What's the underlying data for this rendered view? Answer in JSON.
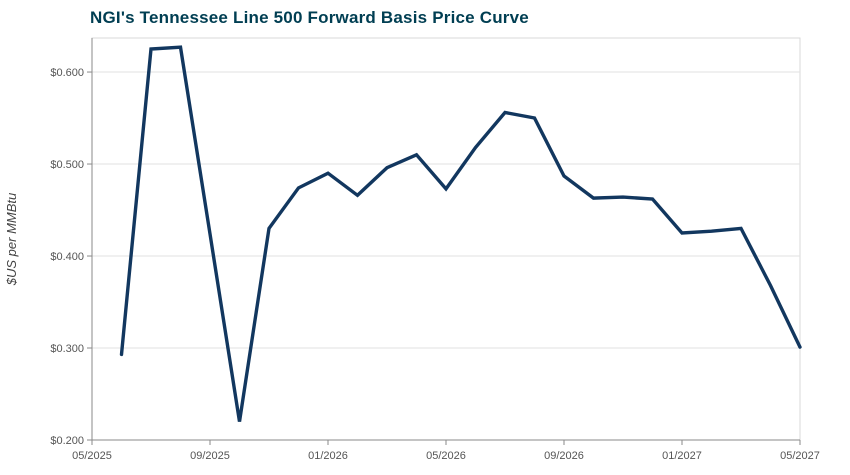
{
  "chart": {
    "title": "NGI's Tennessee Line 500 Forward Basis Price Curve",
    "ylabel": "$US per MMBtu",
    "title_color": "#003e52",
    "line_color": "#12375f"
  },
  "chart_data": {
    "type": "line",
    "title": "NGI's Tennessee Line 500 Forward Basis Price Curve",
    "xlabel": "",
    "ylabel": "$US per MMBtu",
    "x": [
      "06/2025",
      "07/2025",
      "08/2025",
      "09/2025",
      "10/2025",
      "11/2025",
      "12/2025",
      "01/2026",
      "02/2026",
      "03/2026",
      "04/2026",
      "05/2026",
      "06/2026",
      "07/2026",
      "08/2026",
      "09/2026",
      "10/2026",
      "11/2026",
      "12/2026",
      "01/2027",
      "02/2027",
      "03/2027",
      "04/2027",
      "05/2027"
    ],
    "values": [
      0.293,
      0.625,
      0.627,
      0.424,
      0.22,
      0.43,
      0.474,
      0.49,
      0.466,
      0.496,
      0.51,
      0.473,
      0.518,
      0.556,
      0.55,
      0.487,
      0.463,
      0.464,
      0.462,
      0.425,
      0.427,
      0.43,
      0.368,
      0.301
    ],
    "x_tick_labels": [
      "05/2025",
      "09/2025",
      "01/2026",
      "05/2026",
      "09/2026",
      "01/2027",
      "05/2027"
    ],
    "y_tick_labels": [
      "$0.200",
      "$0.300",
      "$0.400",
      "$0.500",
      "$0.600"
    ],
    "y_tick_values": [
      0.2,
      0.3,
      0.4,
      0.5,
      0.6
    ],
    "ylim": [
      0.2,
      0.637
    ],
    "x_range_months": [
      "05/2025",
      "05/2027"
    ],
    "grid": "horizontal",
    "legend": "none",
    "series_name": "Tennessee Line 500 forward basis price",
    "line_color": "#12375f",
    "grid_color": "#e2e2e2",
    "axis_color": "#8a8a8a",
    "border_color": "#d9d9d9",
    "title_color": "#003e52"
  }
}
